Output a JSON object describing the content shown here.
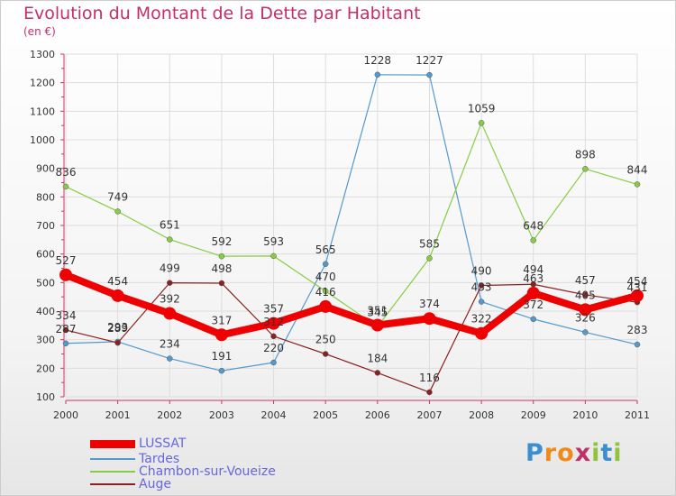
{
  "title": "Evolution du Montant de la Dette par Habitant",
  "subtitle": "(en €)",
  "logo": {
    "text": "Proxiti",
    "letter_colors": [
      "#3a8fd0",
      "#f08a1c",
      "#f08a1c",
      "#c0306a",
      "#8fc43c",
      "#3a8fd0",
      "#8fc43c"
    ]
  },
  "chart_data": {
    "type": "line",
    "x": [
      "2000",
      "2001",
      "2002",
      "2003",
      "2004",
      "2005",
      "2006",
      "2007",
      "2008",
      "2009",
      "2010",
      "2011"
    ],
    "ylim": [
      100,
      1300
    ],
    "yticks": [
      "100",
      "200",
      "300",
      "400",
      "500",
      "600",
      "700",
      "800",
      "900",
      "1000",
      "1100",
      "1200",
      "1300"
    ],
    "grid": true,
    "legend_position": "bottom-left",
    "series": [
      {
        "name": "LUSSAT",
        "color": "#ee0000",
        "values": [
          527,
          454,
          392,
          317,
          357,
          416,
          351,
          374,
          322,
          463,
          405,
          454
        ],
        "labels": [
          "527",
          "454",
          "392",
          "317",
          "357",
          "416",
          "351",
          "374",
          "322",
          "463",
          "405",
          "454"
        ]
      },
      {
        "name": "Tardes",
        "color": "#5599cc",
        "values": [
          287,
          293,
          234,
          191,
          220,
          565,
          1228,
          1227,
          433,
          372,
          326,
          283
        ],
        "labels": [
          "287",
          "293",
          "234",
          "191",
          "220",
          "565",
          "1228",
          "1227",
          "433",
          "372",
          "326",
          "283"
        ]
      },
      {
        "name": "Chambon-sur-Voueize",
        "color": "#88cc44",
        "values": [
          836,
          749,
          651,
          592,
          593,
          470,
          345,
          585,
          1059,
          648,
          898,
          844
        ],
        "labels": [
          "836",
          "749",
          "651",
          "592",
          "593",
          "470",
          "345",
          "585",
          "1059",
          "648",
          "898",
          "844"
        ]
      },
      {
        "name": "Auge",
        "color": "#882222",
        "values": [
          334,
          289,
          499,
          498,
          312,
          250,
          184,
          116,
          490,
          494,
          457,
          431
        ],
        "labels": [
          "334",
          "289",
          "499",
          "498",
          "312",
          "250",
          "184",
          "116",
          "490",
          "494",
          "457",
          "431"
        ]
      }
    ]
  }
}
